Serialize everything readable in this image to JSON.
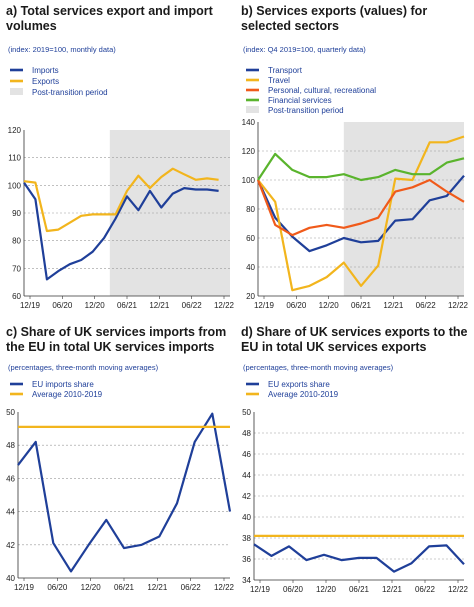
{
  "chart_data": [
    {
      "type": "line",
      "panel_title": "a) Total services export and import volumes",
      "subtitle": "(index: 2019=100, monthly data)",
      "legend_items": [
        "Imports",
        "Exports",
        "Post-transition period"
      ],
      "ylim": [
        60,
        120
      ],
      "yticks": [
        "60",
        "70",
        "80",
        "90",
        "100",
        "110",
        "120"
      ],
      "xticks": [
        "12/19",
        "06/20",
        "12/20",
        "06/21",
        "12/21",
        "06/22",
        "12/22"
      ],
      "xlim": [
        0,
        36
      ],
      "shade": [
        15,
        36
      ],
      "series": [
        {
          "name": "Imports",
          "color": "#1f3f99",
          "x": [
            0,
            2,
            4,
            6,
            8,
            10,
            12,
            14,
            16,
            18,
            20,
            22,
            24,
            26,
            28,
            30,
            32,
            34
          ],
          "values": [
            101,
            95,
            66,
            69,
            71.5,
            73,
            76,
            81,
            88,
            96,
            91,
            98,
            92,
            97,
            99,
            98.5,
            98.5,
            98
          ]
        },
        {
          "name": "Exports",
          "color": "#f2b51d",
          "x": [
            0,
            2,
            4,
            6,
            8,
            10,
            12,
            14,
            16,
            18,
            20,
            22,
            24,
            26,
            28,
            30,
            32,
            34
          ],
          "values": [
            101.5,
            101,
            83.5,
            84,
            86.5,
            89,
            89.5,
            89.5,
            89.5,
            98,
            103.5,
            99,
            103,
            106,
            104,
            102,
            102.5,
            102
          ]
        }
      ]
    },
    {
      "type": "line",
      "panel_title": "b) Services exports (values) for selected sectors",
      "subtitle": "(index: Q4 2019=100, quarterly data)",
      "legend_items": [
        "Transport",
        "Travel",
        "Personal, cultural, recreational",
        "Financial services",
        "Post-transition period"
      ],
      "ylim": [
        20,
        140
      ],
      "yticks": [
        "20",
        "40",
        "60",
        "80",
        "100",
        "120",
        "140"
      ],
      "xticks": [
        "12/19",
        "06/20",
        "12/20",
        "06/21",
        "12/21",
        "06/22",
        "12/22"
      ],
      "xlim": [
        0,
        12
      ],
      "shade": [
        5,
        12
      ],
      "series": [
        {
          "name": "Transport",
          "color": "#1f3f99",
          "x": [
            0,
            1,
            2,
            3,
            4,
            5,
            6,
            7,
            8,
            9,
            10,
            11,
            12
          ],
          "values": [
            100,
            74,
            61,
            51,
            55,
            60,
            57,
            58,
            72,
            73,
            86,
            89,
            103
          ]
        },
        {
          "name": "Travel",
          "color": "#f2b51d",
          "x": [
            0,
            1,
            2,
            3,
            4,
            5,
            6,
            7,
            8,
            9,
            10,
            11,
            12
          ],
          "values": [
            100,
            85,
            24,
            27,
            33,
            43,
            27,
            41,
            101,
            100,
            126,
            126,
            130
          ]
        },
        {
          "name": "Personal, cultural, recreational",
          "color": "#f05a1a",
          "x": [
            0,
            1,
            2,
            3,
            4,
            5,
            6,
            7,
            8,
            9,
            10,
            11,
            12
          ],
          "values": [
            100,
            69,
            62,
            67,
            69,
            67,
            70,
            74,
            92,
            95,
            100,
            92,
            85
          ]
        },
        {
          "name": "Financial services",
          "color": "#5ab42d",
          "x": [
            0,
            1,
            2,
            3,
            4,
            5,
            6,
            7,
            8,
            9,
            10,
            11,
            12
          ],
          "values": [
            100,
            118,
            107,
            102,
            102,
            104,
            100,
            102,
            107,
            104,
            104,
            112,
            115
          ]
        }
      ]
    },
    {
      "type": "line",
      "panel_title": "c) Share of UK services imports from the EU in total UK services imports",
      "subtitle": "(percentages, three-month moving averages)",
      "legend_items": [
        "EU imports share",
        "Average 2010-2019"
      ],
      "ylim": [
        40,
        50
      ],
      "yticks": [
        "40",
        "42",
        "44",
        "46",
        "48",
        "50"
      ],
      "xticks": [
        "12/19",
        "06/20",
        "12/20",
        "06/21",
        "12/21",
        "06/22",
        "12/22"
      ],
      "xlim": [
        0,
        12
      ],
      "series": [
        {
          "name": "EU imports share",
          "color": "#1f3f99",
          "x": [
            0,
            1,
            2,
            3,
            4,
            5,
            6,
            7,
            8,
            9,
            10,
            11,
            12
          ],
          "values": [
            46.8,
            48.2,
            42.1,
            40.4,
            42.0,
            43.5,
            41.8,
            42.0,
            42.5,
            44.5,
            48.2,
            49.9,
            44.0
          ]
        },
        {
          "name": "Average 2010-2019",
          "color": "#f2b51d",
          "x": [
            0,
            12
          ],
          "values": [
            49.1,
            49.1
          ]
        }
      ]
    },
    {
      "type": "line",
      "panel_title": "d) Share of UK services exports to the EU in total UK services exports",
      "subtitle": "(percentages, three-month moving averages)",
      "legend_items": [
        "EU exports share",
        "Average 2010-2019"
      ],
      "ylim": [
        34,
        50
      ],
      "yticks": [
        "34",
        "36",
        "38",
        "40",
        "42",
        "44",
        "46",
        "48",
        "50"
      ],
      "xticks": [
        "12/19",
        "06/20",
        "12/20",
        "06/21",
        "12/21",
        "06/22",
        "12/22"
      ],
      "xlim": [
        0,
        12
      ],
      "series": [
        {
          "name": "EU exports share",
          "color": "#1f3f99",
          "x": [
            0,
            1,
            2,
            3,
            4,
            5,
            6,
            7,
            8,
            9,
            10,
            11,
            12
          ],
          "values": [
            37.4,
            36.3,
            37.2,
            35.9,
            36.4,
            35.9,
            36.1,
            36.1,
            34.8,
            35.6,
            37.2,
            37.3,
            35.5
          ]
        },
        {
          "name": "Average 2010-2019",
          "color": "#f2b51d",
          "x": [
            0,
            12
          ],
          "values": [
            38.2,
            38.2
          ]
        }
      ]
    }
  ]
}
